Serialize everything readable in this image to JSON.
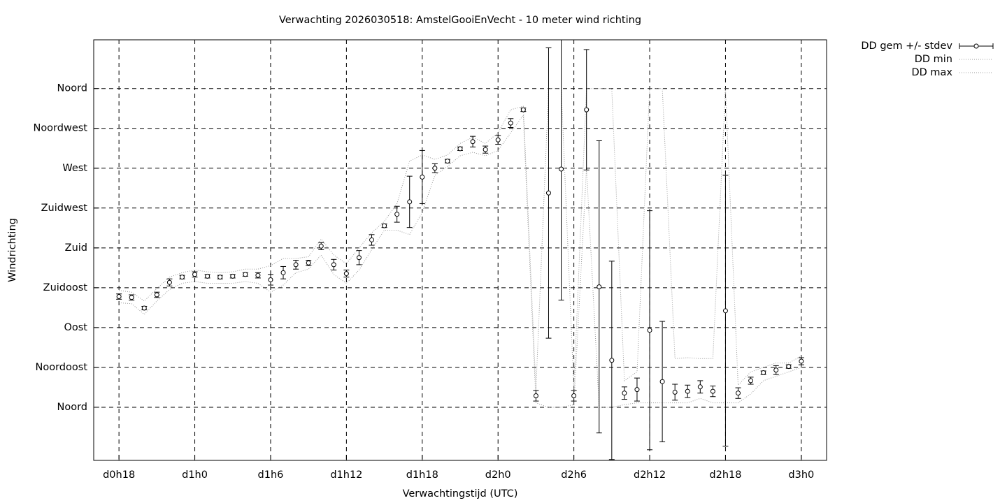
{
  "chart_data": {
    "type": "errorbar",
    "title": "Verwachting 2026030518: AmstelGooiEnVecht - 10 meter wind richting",
    "xlabel": "Verwachtingstijd (UTC)",
    "ylabel": "Windrichting",
    "xlim": [
      16,
      74
    ],
    "ylim": [
      -60,
      415
    ],
    "xticks": [
      {
        "value": 18,
        "label": "d0h18"
      },
      {
        "value": 24,
        "label": "d1h0"
      },
      {
        "value": 30,
        "label": "d1h6"
      },
      {
        "value": 36,
        "label": "d1h12"
      },
      {
        "value": 42,
        "label": "d1h18"
      },
      {
        "value": 48,
        "label": "d2h0"
      },
      {
        "value": 54,
        "label": "d2h6"
      },
      {
        "value": 60,
        "label": "d2h12"
      },
      {
        "value": 66,
        "label": "d2h18"
      },
      {
        "value": 72,
        "label": "d3h0"
      }
    ],
    "yticks": [
      {
        "value": 0,
        "label": "Noord"
      },
      {
        "value": 45,
        "label": "Noordoost"
      },
      {
        "value": 90,
        "label": "Oost"
      },
      {
        "value": 135,
        "label": "Zuidoost"
      },
      {
        "value": 180,
        "label": "Zuid"
      },
      {
        "value": 225,
        "label": "Zuidwest"
      },
      {
        "value": 270,
        "label": "West"
      },
      {
        "value": 315,
        "label": "Noordwest"
      },
      {
        "value": 360,
        "label": "Noord"
      }
    ],
    "grid": true,
    "x": [
      18,
      19,
      20,
      21,
      22,
      23,
      24,
      25,
      26,
      27,
      28,
      29,
      30,
      31,
      32,
      33,
      34,
      35,
      36,
      37,
      38,
      39,
      40,
      41,
      42,
      43,
      44,
      45,
      46,
      47,
      48,
      49,
      50,
      51,
      52,
      53,
      54,
      55,
      56,
      57,
      58,
      59,
      60,
      61,
      62,
      63,
      64,
      65,
      66,
      67,
      68,
      69,
      70,
      71,
      72
    ],
    "series": [
      {
        "name": "DD gem +/- stdev",
        "color": "#000000",
        "style": "errorbar",
        "values": [
          125,
          124,
          112,
          127,
          141,
          147,
          150,
          148,
          147,
          148,
          150,
          149,
          144,
          152,
          161,
          163,
          182,
          161,
          151,
          169,
          189,
          205,
          218,
          232,
          260,
          270,
          278,
          292,
          300,
          291,
          302,
          321,
          336,
          13,
          242,
          269,
          13,
          336,
          136,
          53,
          16,
          20,
          87,
          29,
          17,
          18,
          23,
          18,
          109,
          16,
          30,
          39,
          42,
          46,
          52
        ],
        "errors": [
          3,
          3,
          2,
          3,
          4,
          2,
          3,
          2,
          2,
          2,
          2,
          3,
          6,
          7,
          5,
          3,
          4,
          6,
          4,
          8,
          6,
          2,
          9,
          29,
          30,
          5,
          2,
          2,
          6,
          4,
          5,
          5,
          2,
          6,
          164,
          148,
          6,
          68,
          165,
          112,
          7,
          13,
          135,
          68,
          9,
          7,
          7,
          6,
          153,
          6,
          4,
          2,
          5,
          2,
          4
        ]
      },
      {
        "name": "DD min",
        "color": "#999999",
        "style": "dotted",
        "values": [
          118,
          117,
          105,
          120,
          133,
          140,
          142,
          140,
          140,
          140,
          142,
          140,
          130,
          138,
          152,
          156,
          172,
          150,
          140,
          155,
          178,
          200,
          200,
          195,
          220,
          262,
          272,
          284,
          288,
          284,
          290,
          310,
          330,
          5,
          0,
          0,
          3,
          270,
          0,
          0,
          3,
          5,
          5,
          5,
          5,
          5,
          10,
          5,
          5,
          5,
          15,
          30,
          35,
          40,
          45
        ]
      },
      {
        "name": "DD max",
        "color": "#999999",
        "style": "dotted",
        "values": [
          132,
          130,
          120,
          134,
          147,
          152,
          155,
          153,
          152,
          153,
          156,
          156,
          160,
          168,
          168,
          170,
          190,
          172,
          162,
          180,
          197,
          210,
          230,
          278,
          285,
          280,
          285,
          298,
          305,
          298,
          310,
          336,
          340,
          20,
          360,
          360,
          20,
          360,
          360,
          360,
          30,
          40,
          360,
          360,
          55,
          56,
          55,
          55,
          360,
          25,
          40,
          45,
          50,
          50,
          58
        ]
      }
    ]
  }
}
